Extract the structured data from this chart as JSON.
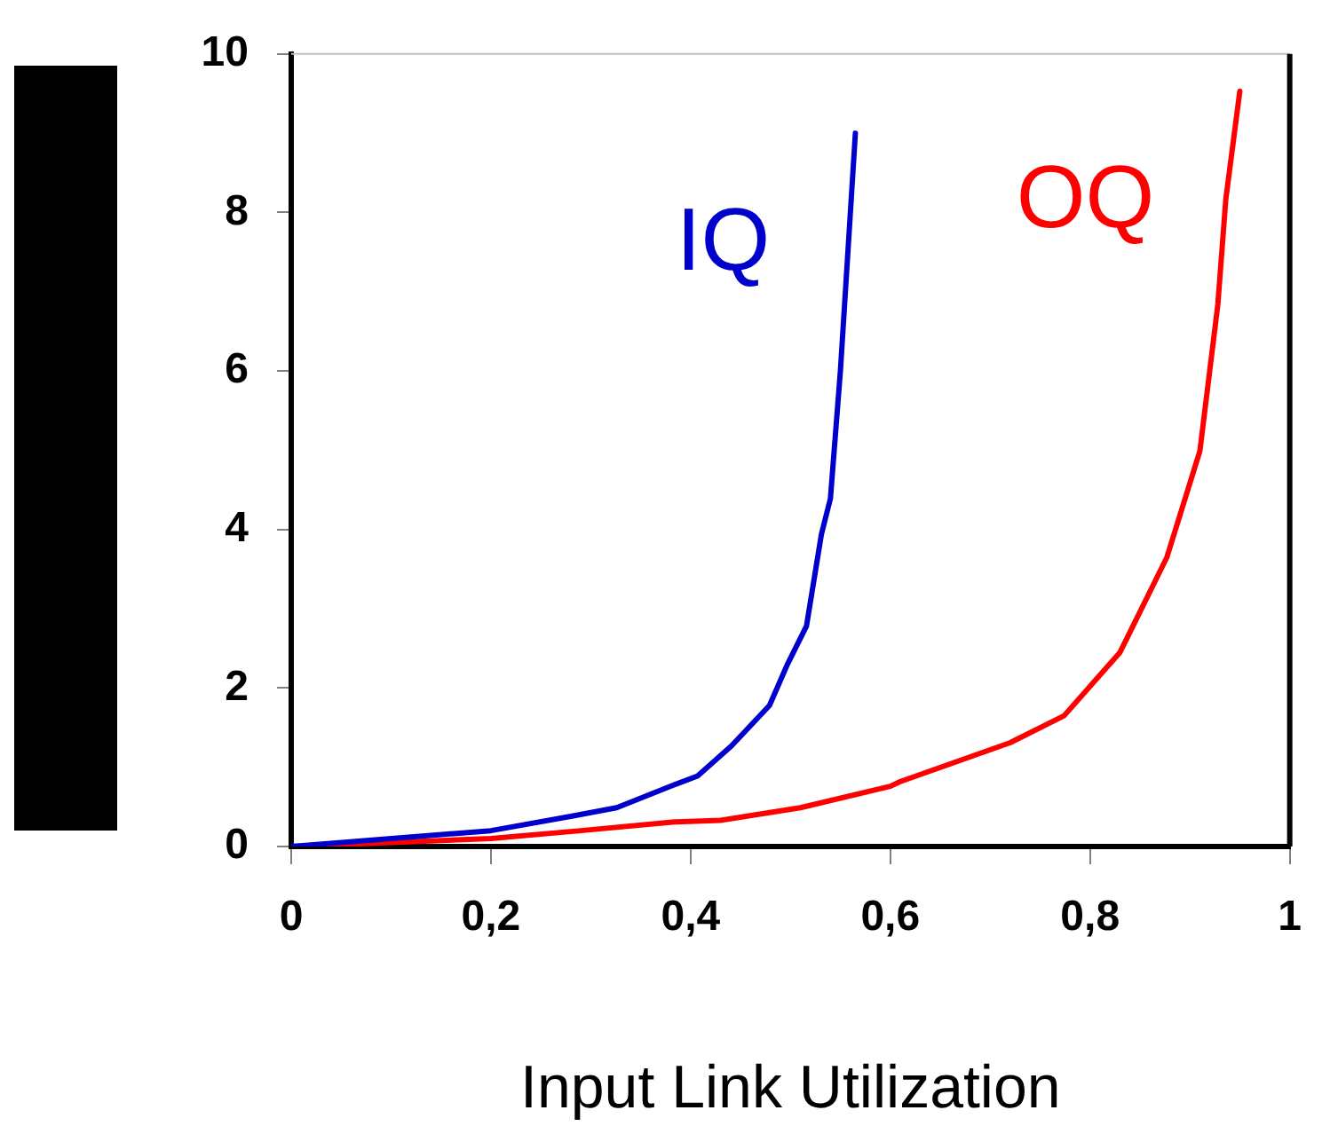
{
  "chart_data": {
    "type": "line",
    "xlabel": "Input Link Utilization",
    "x": [
      0,
      0.2,
      0.28,
      0.326,
      0.384,
      0.407,
      0.441,
      0.479,
      0.497,
      0.516,
      0.531,
      0.54,
      0.55,
      0.565
    ],
    "xlim": [
      0,
      1
    ],
    "ylim": [
      0,
      10
    ],
    "xticks": [
      0,
      {
        "value": 0.2,
        "label": "0,2"
      },
      {
        "value": 0.4,
        "label": "0,4"
      },
      {
        "value": 0.6,
        "label": "0,6"
      },
      {
        "value": 0.8,
        "label": "0,8"
      },
      1
    ],
    "yticks": [
      0,
      2,
      4,
      6,
      8,
      10
    ],
    "series": [
      {
        "name": "IQ",
        "color": "#0000cc",
        "values": [
          0,
          0.2,
          0.38,
          0.49,
          0.78,
          0.89,
          1.27,
          1.78,
          2.3,
          2.78,
          3.94,
          4.39,
          6.0,
          9.0
        ]
      },
      {
        "name": "OQ",
        "color": "#ff0000",
        "x": [
          0,
          0.2,
          0.29,
          0.384,
          0.43,
          0.51,
          0.6,
          0.61,
          0.72,
          0.774,
          0.83,
          0.877,
          0.91,
          0.928,
          0.936,
          0.95
        ],
        "values": [
          0,
          0.1,
          0.2,
          0.31,
          0.33,
          0.49,
          0.76,
          0.82,
          1.31,
          1.65,
          2.45,
          3.65,
          4.99,
          6.84,
          8.17,
          9.53
        ]
      }
    ],
    "grid": false,
    "legend": false,
    "marker": "none",
    "line_style": "solid"
  }
}
